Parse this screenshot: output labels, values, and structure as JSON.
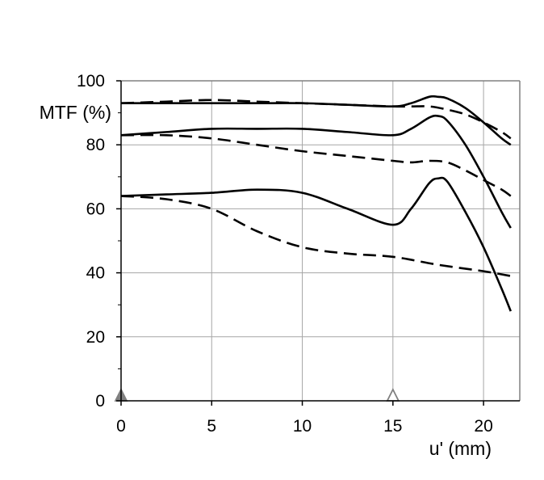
{
  "chart_data": {
    "type": "line",
    "title": "",
    "xlabel": "u' (mm)",
    "ylabel": "MTF (%)",
    "xlim": [
      0,
      22
    ],
    "ylim": [
      0,
      100
    ],
    "xticks": [
      0,
      5,
      10,
      15,
      20
    ],
    "yticks": [
      0,
      20,
      40,
      60,
      80,
      100
    ],
    "y_minor_ticks": [
      10,
      30,
      50,
      70,
      90
    ],
    "grid": true,
    "markers": [
      {
        "x": 0,
        "y": 0,
        "shape": "triangle",
        "filled": true,
        "color": "#808080"
      },
      {
        "x": 15,
        "y": 0,
        "shape": "triangle",
        "filled": false,
        "color": "#808080"
      }
    ],
    "series": [
      {
        "style": "solid",
        "x": [
          0,
          2.5,
          5,
          7.5,
          10,
          12.5,
          15,
          16,
          17,
          17.5,
          18,
          19,
          20,
          21,
          21.5
        ],
        "y": [
          93,
          93,
          93,
          93,
          93,
          92.5,
          92,
          93,
          95,
          95,
          94.5,
          91.5,
          87,
          82,
          80
        ]
      },
      {
        "style": "dashed",
        "x": [
          0,
          2.5,
          5,
          7.5,
          10,
          12.5,
          15,
          16,
          17,
          18,
          19,
          20,
          21,
          21.5
        ],
        "y": [
          93,
          93.5,
          94,
          93.5,
          93,
          92.5,
          92,
          92,
          92,
          91,
          89.5,
          87,
          84,
          82
        ]
      },
      {
        "style": "solid",
        "x": [
          0,
          2.5,
          5,
          7.5,
          10,
          12.5,
          15,
          16,
          17,
          17.5,
          18,
          19,
          20,
          21,
          21.5
        ],
        "y": [
          83,
          84,
          85,
          85,
          85,
          84,
          83,
          85,
          88.5,
          89,
          87.5,
          80,
          70,
          59,
          54
        ]
      },
      {
        "style": "dashed",
        "x": [
          0,
          2.5,
          5,
          7.5,
          10,
          12.5,
          15,
          16,
          17,
          18,
          19,
          20,
          21,
          21.5
        ],
        "y": [
          83,
          83,
          82,
          80,
          78,
          76.5,
          75,
          74.5,
          75,
          74.5,
          72,
          69,
          66,
          64
        ]
      },
      {
        "style": "solid",
        "x": [
          0,
          2.5,
          5,
          7.5,
          10,
          12.5,
          15,
          16,
          17,
          17.5,
          18,
          19,
          20,
          21,
          21.5
        ],
        "y": [
          64,
          64.5,
          65,
          66,
          65,
          60,
          55,
          60,
          68,
          69.5,
          68.5,
          59,
          48,
          35,
          28
        ]
      },
      {
        "style": "dashed",
        "x": [
          0,
          2.5,
          5,
          7.5,
          10,
          12.5,
          15,
          17.5,
          20,
          21.5
        ],
        "y": [
          64,
          63,
          60,
          53,
          48,
          46,
          45,
          42.5,
          40.5,
          39
        ]
      }
    ]
  }
}
